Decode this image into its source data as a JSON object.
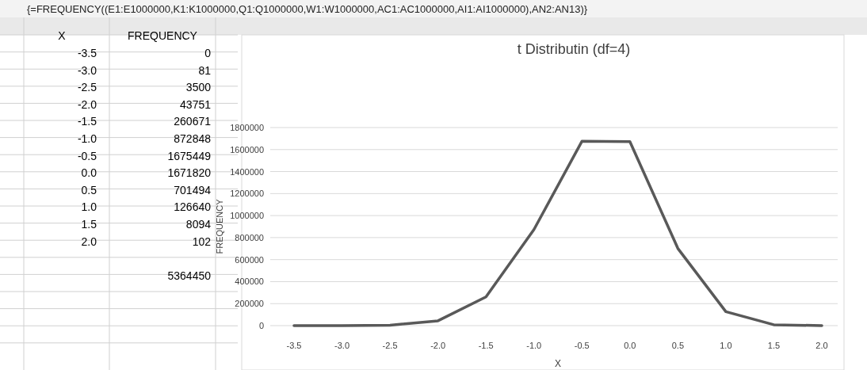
{
  "chart_data": {
    "type": "line",
    "title": "t Distributin (df=4)",
    "xlabel": "X",
    "ylabel": "FREQUENCY",
    "categories": [
      "-3.5",
      "-3.0",
      "-2.5",
      "-2.0",
      "-1.5",
      "-1.0",
      "-0.5",
      "0.0",
      "0.5",
      "1.0",
      "1.5",
      "2.0"
    ],
    "series": [
      {
        "color": "#595959",
        "values": [
          0,
          81,
          3500,
          43751,
          260671,
          872848,
          1675449,
          1671820,
          701494,
          126640,
          8094,
          102
        ]
      }
    ],
    "ylim": [
      0,
      1800000
    ],
    "yticks": [
      0,
      200000,
      400000,
      600000,
      800000,
      1000000,
      1200000,
      1400000,
      1600000,
      1800000
    ],
    "grid": "y",
    "marker": "none",
    "line_style": "solid",
    "annotations": [
      "{=FREQUENCY((E1:E1000000,K1:K1000000,Q1:Q1000000,W1:W1000000,AC1:AC1000000,AI1:AI1000000),AN2:AN13)}",
      "0",
      "81",
      "3500",
      "43751",
      "260671",
      "872848",
      "1675449",
      "1671820",
      "701494",
      "126640",
      "8094",
      "102",
      "5364450"
    ]
  }
}
